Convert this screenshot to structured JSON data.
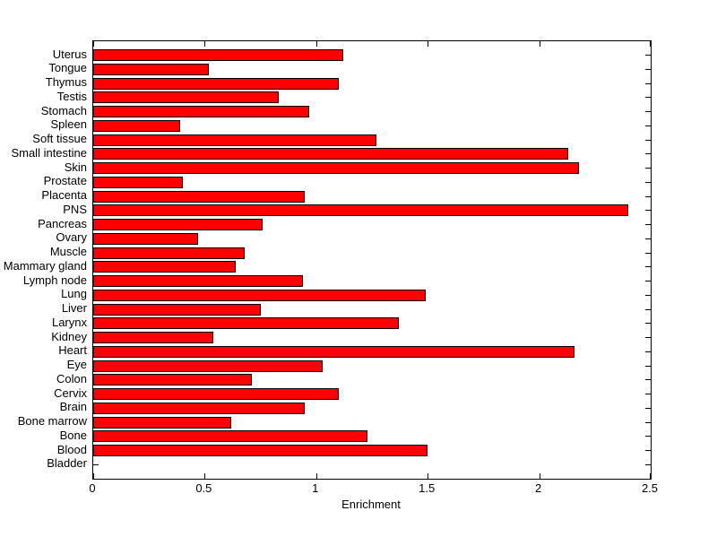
{
  "chart_data": {
    "type": "bar",
    "orientation": "horizontal",
    "title": "",
    "xlabel": "Enrichment",
    "ylabel": "",
    "categories": [
      "Uterus",
      "Tongue",
      "Thymus",
      "Testis",
      "Stomach",
      "Spleen",
      "Soft tissue",
      "Small intestine",
      "Skin",
      "Prostate",
      "Placenta",
      "PNS",
      "Pancreas",
      "Ovary",
      "Muscle",
      "Mammary gland",
      "Lymph node",
      "Lung",
      "Liver",
      "Larynx",
      "Kidney",
      "Heart",
      "Eye",
      "Colon",
      "Cervix",
      "Brain",
      "Bone marrow",
      "Bone",
      "Blood",
      "Bladder"
    ],
    "values": [
      1.12,
      0.52,
      1.1,
      0.83,
      0.97,
      0.39,
      1.27,
      2.13,
      2.18,
      0.4,
      0.95,
      2.4,
      0.76,
      0.47,
      0.68,
      0.64,
      0.94,
      1.49,
      0.75,
      1.37,
      0.54,
      2.16,
      1.03,
      0.71,
      1.1,
      0.95,
      0.62,
      1.23,
      1.5,
      0.0
    ],
    "xlim": [
      0,
      2.5
    ],
    "xticks": [
      0,
      0.5,
      1,
      1.5,
      2,
      2.5
    ],
    "xtick_labels": [
      "0",
      "0.5",
      "1",
      "1.5",
      "2",
      "2.5"
    ],
    "grid": false,
    "legend": null,
    "bar_color": "#ff0000",
    "bar_edge_color": "#000000",
    "axis_color": "#000000",
    "background_color": "#ffffff",
    "text_color": "#000000"
  }
}
